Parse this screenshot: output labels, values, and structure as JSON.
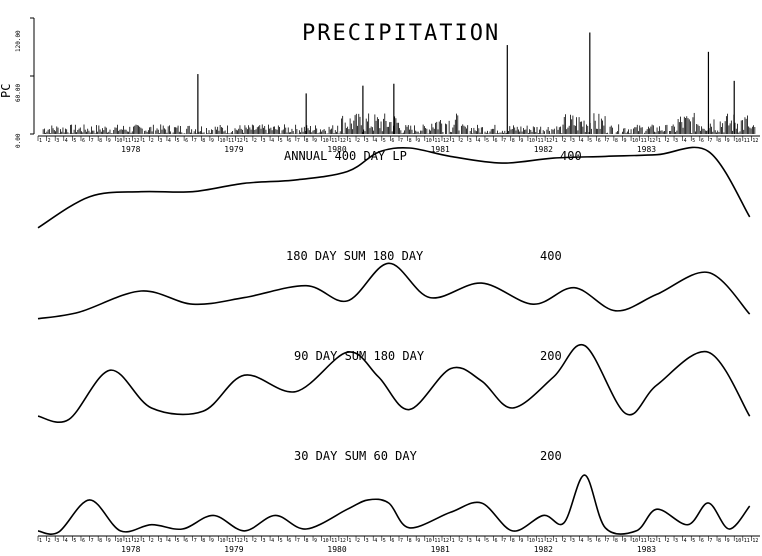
{
  "chart_data": [
    {
      "type": "bar",
      "title": "PRECIPITATION",
      "ylabel": "PC",
      "ylim": [
        0,
        120
      ],
      "yticks": [
        "0.00",
        "60.00",
        "120.00"
      ],
      "x_years": [
        "1978",
        "1979",
        "1980",
        "1981",
        "1982",
        "1983"
      ],
      "month_ticks": [
        "1",
        "2",
        "3",
        "4",
        "5",
        "6",
        "7",
        "8",
        "9",
        "10",
        "11",
        "12"
      ],
      "peaks": [
        {
          "x": 1978.55,
          "y": 62
        },
        {
          "x": 1979.6,
          "y": 42
        },
        {
          "x": 1980.15,
          "y": 50
        },
        {
          "x": 1980.45,
          "y": 52
        },
        {
          "x": 1981.55,
          "y": 92
        },
        {
          "x": 1982.35,
          "y": 105
        },
        {
          "x": 1983.5,
          "y": 85
        },
        {
          "x": 1983.75,
          "y": 55
        }
      ]
    },
    {
      "type": "line",
      "label_left": "ANNUAL 400 DAY LP",
      "label_right": "400",
      "x": [
        1977.0,
        1977.5,
        1978.0,
        1978.5,
        1979.0,
        1979.5,
        1980.0,
        1980.3,
        1980.6,
        1981.0,
        1981.5,
        1982.0,
        1982.5,
        1983.0,
        1983.5,
        1983.9
      ],
      "y": [
        0.05,
        0.42,
        0.48,
        0.48,
        0.58,
        0.62,
        0.72,
        0.95,
        1.0,
        0.9,
        0.82,
        0.88,
        0.9,
        0.92,
        0.96,
        0.18
      ],
      "ylim": [
        0,
        1
      ]
    },
    {
      "type": "line",
      "label_left": "180 DAY SUM 180 DAY",
      "label_right": "400",
      "x": [
        1977.0,
        1977.4,
        1978.0,
        1978.5,
        1979.0,
        1979.6,
        1980.0,
        1980.4,
        1980.8,
        1981.3,
        1981.8,
        1982.2,
        1982.6,
        1983.0,
        1983.5,
        1983.9
      ],
      "y": [
        0.08,
        0.18,
        0.5,
        0.3,
        0.4,
        0.58,
        0.35,
        0.92,
        0.4,
        0.62,
        0.3,
        0.55,
        0.2,
        0.45,
        0.78,
        0.15
      ],
      "ylim": [
        0,
        1
      ]
    },
    {
      "type": "line",
      "label_left": "90 DAY SUM 180 DAY",
      "label_right": "200",
      "x": [
        1977.0,
        1977.3,
        1977.7,
        1978.1,
        1978.6,
        1979.0,
        1979.5,
        1980.0,
        1980.3,
        1980.6,
        1981.0,
        1981.3,
        1981.6,
        1982.0,
        1982.3,
        1982.7,
        1983.0,
        1983.5,
        1983.9
      ],
      "y": [
        0.12,
        0.08,
        0.68,
        0.22,
        0.18,
        0.62,
        0.42,
        0.9,
        0.6,
        0.2,
        0.7,
        0.55,
        0.22,
        0.6,
        0.98,
        0.15,
        0.5,
        0.9,
        0.12
      ],
      "ylim": [
        0,
        1
      ]
    },
    {
      "type": "line",
      "label_left": "30 DAY SUM 60 DAY",
      "label_right": "200",
      "x": [
        1977.0,
        1977.2,
        1977.5,
        1977.8,
        1978.1,
        1978.4,
        1978.7,
        1979.0,
        1979.3,
        1979.6,
        1980.0,
        1980.2,
        1980.4,
        1980.6,
        1981.0,
        1981.3,
        1981.6,
        1981.9,
        1982.1,
        1982.3,
        1982.5,
        1982.8,
        1983.0,
        1983.3,
        1983.5,
        1983.7,
        1983.9
      ],
      "y": [
        0.05,
        0.03,
        0.55,
        0.05,
        0.15,
        0.08,
        0.3,
        0.05,
        0.3,
        0.08,
        0.4,
        0.55,
        0.5,
        0.1,
        0.35,
        0.5,
        0.05,
        0.3,
        0.18,
        0.95,
        0.1,
        0.05,
        0.4,
        0.15,
        0.5,
        0.08,
        0.45
      ],
      "ylim": [
        0,
        1
      ]
    }
  ],
  "x_axis_years": [
    "1978",
    "1979",
    "1980",
    "1981",
    "1982",
    "1983"
  ]
}
